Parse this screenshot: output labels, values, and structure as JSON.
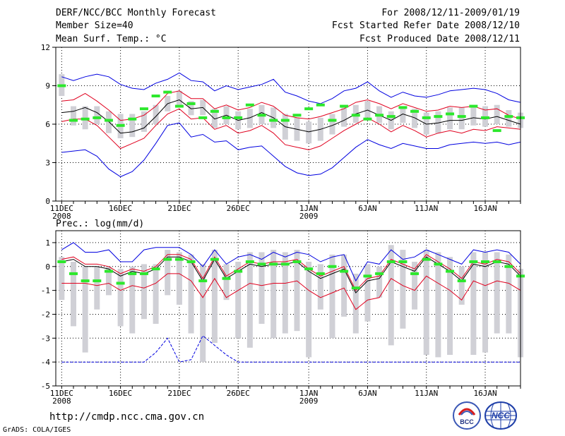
{
  "header": {
    "title": "DERF/NCC/BCC Monthly Forecast",
    "member_size": "Member Size=40",
    "variable": "Mean Surf. Temp.: °C",
    "period": "For 2008/12/11-2009/01/19",
    "start_date": "Fcst Started Refer Date 2008/12/10",
    "produced_date": "Fcst Produced Date 2008/12/11"
  },
  "footer": {
    "url": "http://cmdp.ncc.cma.gov.cn",
    "credit": "GrADS: COLA/IGES",
    "logo_left": "BCC",
    "logo_right": "NCC"
  },
  "colors": {
    "box": "#d0d0d6",
    "ensemble_mean": "#000000",
    "sigma_band": "#e0001e",
    "range_band": "#0000e0",
    "observation": "#2ce82c",
    "grid": "#000000"
  },
  "chart_data": [
    {
      "type": "line",
      "title": "Mean Surf. Temp.: °C",
      "xlabel": "",
      "ylabel": "",
      "ylim": [
        0,
        12
      ],
      "yticks": [
        0,
        3,
        6,
        9,
        12
      ],
      "xlim": [
        0.5,
        40
      ],
      "x_tick_positions": [
        1,
        6,
        11,
        16,
        22,
        27,
        32,
        37
      ],
      "x_tick_labels": [
        "11DEC",
        "16DEC",
        "21DEC",
        "26DEC",
        "1JAN",
        "6JAN",
        "11JAN",
        "16JAN"
      ],
      "x_year_labels": [
        {
          "x": 1,
          "label": "2008"
        },
        {
          "x": 22,
          "label": "2009"
        }
      ],
      "grid": true,
      "x": [
        1,
        2,
        3,
        4,
        5,
        6,
        7,
        8,
        9,
        10,
        11,
        12,
        13,
        14,
        15,
        16,
        17,
        18,
        19,
        20,
        21,
        22,
        23,
        24,
        25,
        26,
        27,
        28,
        29,
        30,
        31,
        32,
        33,
        34,
        35,
        36,
        37,
        38,
        39,
        40
      ],
      "series": [
        {
          "name": "ensemble-mean",
          "values": [
            6.9,
            7.0,
            7.3,
            6.9,
            6.2,
            5.3,
            5.4,
            5.7,
            6.6,
            7.6,
            7.9,
            7.2,
            7.3,
            6.4,
            6.7,
            6.3,
            6.5,
            6.9,
            6.5,
            5.8,
            5.6,
            5.4,
            5.6,
            5.9,
            6.3,
            6.8,
            7.1,
            6.7,
            6.3,
            6.8,
            6.5,
            6.0,
            6.1,
            6.3,
            6.3,
            6.5,
            6.4,
            6.6,
            6.3,
            6.0
          ]
        },
        {
          "name": "upper-sigma",
          "values": [
            7.8,
            7.9,
            8.4,
            7.8,
            7.1,
            6.3,
            6.4,
            6.7,
            7.4,
            8.4,
            8.6,
            8.0,
            8.0,
            7.2,
            7.5,
            7.1,
            7.3,
            7.7,
            7.4,
            6.7,
            6.5,
            6.4,
            6.6,
            6.9,
            7.2,
            7.7,
            7.9,
            7.6,
            7.2,
            7.6,
            7.3,
            7.0,
            7.1,
            7.4,
            7.3,
            7.4,
            7.1,
            7.2,
            6.7,
            6.4
          ]
        },
        {
          "name": "lower-sigma",
          "values": [
            6.2,
            6.4,
            6.4,
            5.9,
            5.0,
            4.1,
            4.5,
            4.9,
            5.9,
            6.8,
            7.2,
            6.4,
            6.5,
            5.6,
            5.9,
            5.3,
            5.5,
            5.9,
            5.3,
            4.4,
            4.2,
            4.0,
            4.3,
            4.9,
            5.5,
            6.0,
            6.5,
            6.0,
            5.4,
            5.9,
            5.5,
            5.0,
            5.3,
            5.5,
            5.3,
            5.6,
            5.5,
            5.8,
            5.7,
            5.6
          ]
        },
        {
          "name": "ensemble-max",
          "values": [
            9.7,
            9.4,
            9.7,
            9.9,
            9.7,
            9.1,
            8.8,
            8.7,
            9.2,
            9.5,
            10.0,
            9.4,
            9.3,
            8.6,
            9.0,
            8.7,
            8.9,
            9.1,
            9.5,
            8.5,
            8.2,
            7.8,
            7.6,
            8.0,
            8.6,
            8.8,
            9.3,
            8.6,
            8.1,
            8.5,
            8.2,
            8.1,
            8.3,
            8.6,
            8.7,
            8.8,
            8.7,
            8.4,
            7.9,
            7.7
          ]
        },
        {
          "name": "ensemble-min",
          "values": [
            3.8,
            3.9,
            4.0,
            3.5,
            2.5,
            1.9,
            2.3,
            3.2,
            4.5,
            5.9,
            6.1,
            5.0,
            5.2,
            4.6,
            4.7,
            4.0,
            4.2,
            4.3,
            3.5,
            2.7,
            2.2,
            2.0,
            2.1,
            2.6,
            3.4,
            4.2,
            4.8,
            4.4,
            4.1,
            4.5,
            4.3,
            4.1,
            4.1,
            4.4,
            4.5,
            4.6,
            4.5,
            4.6,
            4.4,
            4.6
          ]
        }
      ],
      "box_bars": {
        "low": [
          8.2,
          5.9,
          5.6,
          6.0,
          5.3,
          4.9,
          5.0,
          5.4,
          6.0,
          7.0,
          7.4,
          6.7,
          6.7,
          5.7,
          6.0,
          5.6,
          5.7,
          6.0,
          5.7,
          4.8,
          4.7,
          4.5,
          4.7,
          5.2,
          5.8,
          6.1,
          6.5,
          6.1,
          5.6,
          6.1,
          5.7,
          5.2,
          5.3,
          5.6,
          5.6,
          5.9,
          5.8,
          6.0,
          5.8,
          5.7
        ],
        "high": [
          9.9,
          7.4,
          7.4,
          7.4,
          7.0,
          6.8,
          6.8,
          7.0,
          7.5,
          8.2,
          8.6,
          7.8,
          7.9,
          7.2,
          7.4,
          7.0,
          7.2,
          7.5,
          7.3,
          6.8,
          6.5,
          6.2,
          6.5,
          6.8,
          7.3,
          7.5,
          7.8,
          7.4,
          7.0,
          7.4,
          7.2,
          6.9,
          7.0,
          7.3,
          7.3,
          7.5,
          7.4,
          7.5,
          7.1,
          6.9
        ]
      },
      "observation": [
        9.0,
        6.3,
        6.4,
        6.5,
        6.3,
        5.9,
        6.4,
        7.2,
        8.2,
        8.5,
        7.4,
        7.6,
        6.5,
        7.0,
        6.5,
        6.5,
        7.5,
        6.7,
        6.3,
        6.3,
        6.7,
        7.2,
        7.5,
        6.3,
        7.4,
        6.7,
        6.4,
        6.7,
        6.6,
        7.3,
        7.0,
        6.5,
        6.6,
        6.8,
        6.6,
        7.4,
        6.5,
        5.5,
        6.6,
        6.5
      ]
    },
    {
      "type": "line",
      "title": "Prec.: log(mm/d)",
      "xlabel": "",
      "ylabel": "",
      "ylim": [
        -5,
        1.5
      ],
      "yticks": [
        -5,
        -4,
        -3,
        -2,
        -1,
        0,
        1
      ],
      "xlim": [
        0.5,
        40
      ],
      "x_tick_positions": [
        1,
        6,
        11,
        16,
        22,
        27,
        32,
        37
      ],
      "x_tick_labels": [
        "11DEC",
        "16DEC",
        "21DEC",
        "26DEC",
        "1JAN",
        "6JAN",
        "11JAN",
        "16JAN"
      ],
      "x_year_labels": [
        {
          "x": 1,
          "label": "2008"
        },
        {
          "x": 22,
          "label": "2009"
        }
      ],
      "grid": true,
      "x": [
        1,
        2,
        3,
        4,
        5,
        6,
        7,
        8,
        9,
        10,
        11,
        12,
        13,
        14,
        15,
        16,
        17,
        18,
        19,
        20,
        21,
        22,
        23,
        24,
        25,
        26,
        27,
        28,
        29,
        30,
        31,
        32,
        33,
        34,
        35,
        36,
        37,
        38,
        39,
        40
      ],
      "series": [
        {
          "name": "ensemble-mean",
          "values": [
            0.2,
            0.3,
            0.0,
            0.0,
            -0.1,
            -0.4,
            -0.2,
            -0.3,
            -0.1,
            0.4,
            0.4,
            0.2,
            -0.6,
            0.3,
            -0.5,
            -0.2,
            0.1,
            0.0,
            0.1,
            0.1,
            0.2,
            -0.2,
            -0.5,
            -0.3,
            -0.1,
            -1.1,
            -0.6,
            -0.5,
            0.2,
            0.0,
            -0.2,
            0.4,
            0.1,
            -0.2,
            -0.6,
            0.1,
            0.0,
            0.2,
            0.1,
            -0.4
          ]
        },
        {
          "name": "upper-sigma",
          "values": [
            0.3,
            0.4,
            0.1,
            0.1,
            0.0,
            -0.3,
            -0.1,
            -0.2,
            0.0,
            0.5,
            0.5,
            0.3,
            -0.5,
            0.4,
            -0.4,
            -0.1,
            0.2,
            0.1,
            0.2,
            0.2,
            0.3,
            -0.1,
            -0.4,
            -0.2,
            0.0,
            -1.0,
            -0.5,
            -0.4,
            0.3,
            0.1,
            -0.1,
            0.5,
            0.2,
            -0.1,
            -0.5,
            0.2,
            0.1,
            0.3,
            0.2,
            -0.3
          ]
        },
        {
          "name": "lower-sigma",
          "values": [
            -0.7,
            -0.7,
            -0.7,
            -0.8,
            -0.7,
            -1.0,
            -0.8,
            -0.9,
            -0.7,
            -0.3,
            -0.3,
            -0.6,
            -1.3,
            -0.5,
            -1.3,
            -1.0,
            -0.7,
            -0.8,
            -0.7,
            -0.7,
            -0.6,
            -1.0,
            -1.3,
            -1.1,
            -0.9,
            -1.8,
            -1.4,
            -1.3,
            -0.5,
            -0.8,
            -1.0,
            -0.4,
            -0.7,
            -1.0,
            -1.4,
            -0.6,
            -0.8,
            -0.6,
            -0.7,
            -1.0
          ]
        },
        {
          "name": "ensemble-max",
          "values": [
            0.7,
            1.0,
            0.6,
            0.6,
            0.7,
            0.2,
            0.2,
            0.7,
            0.8,
            0.8,
            0.8,
            0.5,
            0.0,
            0.7,
            0.1,
            0.4,
            0.5,
            0.3,
            0.6,
            0.4,
            0.6,
            0.5,
            0.2,
            0.4,
            0.5,
            -0.6,
            0.2,
            0.1,
            0.7,
            0.3,
            0.4,
            0.7,
            0.5,
            0.3,
            0.1,
            0.7,
            0.6,
            0.7,
            0.6,
            0.1
          ]
        },
        {
          "name": "ensemble-min",
          "values": [
            -4.0,
            -4.0,
            -4.0,
            -4.0,
            -4.0,
            -4.0,
            -4.0,
            -4.0,
            -3.6,
            -3.0,
            -4.0,
            -3.9,
            -2.9,
            -3.3,
            -3.7,
            -4.0,
            -4.0,
            -4.0,
            -4.0,
            -4.0,
            -4.0,
            -4.0,
            -4.0,
            -4.0,
            -4.0,
            -4.0,
            -4.0,
            -4.0,
            -4.0,
            -4.0,
            -4.0,
            -4.0,
            -4.0,
            -4.0,
            -4.0,
            -4.0,
            -4.0,
            -4.0,
            -4.0,
            -4.0
          ]
        }
      ],
      "box_bars": {
        "low": [
          -1.4,
          -2.5,
          -3.6,
          -1.8,
          -1.2,
          -2.5,
          -2.8,
          -2.2,
          -2.4,
          -1.2,
          -1.6,
          -2.8,
          -4.0,
          -3.2,
          -1.4,
          -3.0,
          -3.4,
          -2.4,
          -3.0,
          -2.8,
          -2.7,
          -3.8,
          -1.8,
          -3.0,
          -2.1,
          -2.8,
          -2.3,
          -1.3,
          -3.3,
          -2.6,
          -1.8,
          -3.7,
          -3.8,
          -3.7,
          -1.6,
          -3.7,
          -3.6,
          -2.8,
          -2.8,
          -3.8
        ],
        "high": [
          0.4,
          0.2,
          0.0,
          0.0,
          0.0,
          -0.1,
          0.0,
          0.1,
          0.1,
          0.7,
          0.6,
          0.5,
          0.1,
          0.7,
          0.1,
          0.2,
          0.6,
          0.6,
          0.7,
          0.6,
          0.7,
          0.2,
          0.1,
          0.5,
          0.5,
          -0.3,
          0.1,
          0.0,
          0.9,
          0.7,
          0.2,
          0.7,
          0.6,
          0.4,
          0.0,
          0.6,
          0.6,
          0.6,
          0.5,
          -0.1
        ]
      },
      "observation": [
        0.2,
        -0.3,
        -0.6,
        -0.6,
        -0.2,
        -0.7,
        -0.3,
        -0.3,
        -0.1,
        0.3,
        0.3,
        0.2,
        -0.6,
        0.3,
        -0.5,
        -0.2,
        0.2,
        0.1,
        0.1,
        0.1,
        0.2,
        -0.1,
        -0.3,
        0.0,
        -0.2,
        -0.9,
        -0.4,
        -0.3,
        0.2,
        0.2,
        -0.3,
        0.3,
        0.1,
        -0.2,
        -0.6,
        0.2,
        0.2,
        0.2,
        0.0,
        -0.4
      ]
    }
  ]
}
